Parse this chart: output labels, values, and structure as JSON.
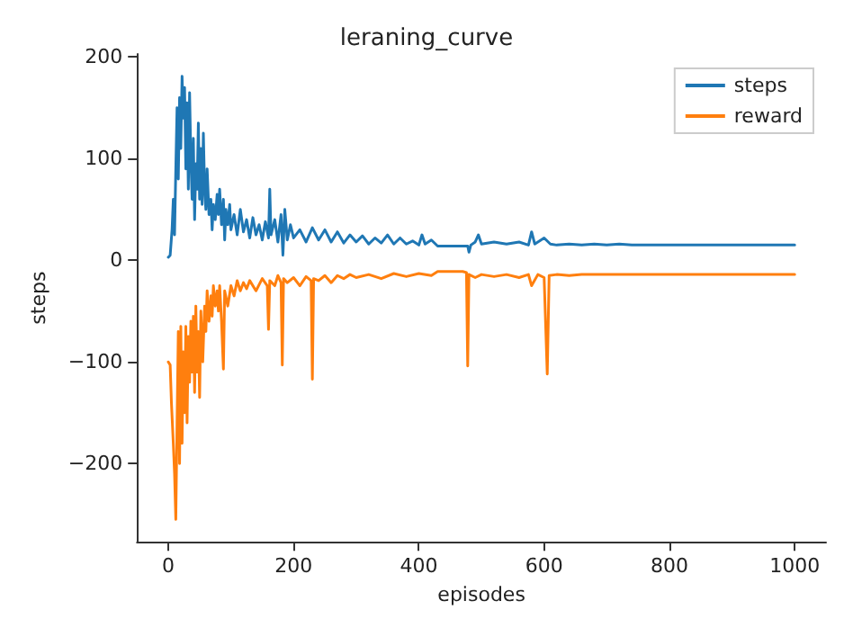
{
  "chart_data": {
    "type": "line",
    "title": "leraning_curve",
    "xlabel": "episodes",
    "ylabel": "steps",
    "xlim": [
      -50,
      1050
    ],
    "ylim": [
      -277,
      203
    ],
    "xticks": [
      0,
      200,
      400,
      600,
      800,
      1000
    ],
    "yticks": [
      -200,
      -100,
      0,
      100,
      200
    ],
    "grid": false,
    "legend": "top right",
    "marker": "none",
    "line_style": "solid",
    "series": [
      {
        "name": "steps",
        "color": "#1f77b4",
        "x": [
          0,
          3,
          6,
          8,
          10,
          12,
          14,
          16,
          18,
          20,
          22,
          24,
          26,
          28,
          30,
          32,
          34,
          36,
          38,
          40,
          42,
          44,
          46,
          48,
          50,
          52,
          54,
          56,
          58,
          60,
          62,
          65,
          68,
          70,
          72,
          75,
          78,
          80,
          82,
          85,
          88,
          90,
          92,
          95,
          98,
          100,
          105,
          110,
          115,
          120,
          125,
          130,
          135,
          140,
          145,
          150,
          155,
          160,
          162,
          164,
          170,
          175,
          180,
          183,
          186,
          190,
          195,
          200,
          210,
          220,
          230,
          240,
          250,
          260,
          270,
          280,
          290,
          300,
          310,
          320,
          330,
          340,
          350,
          360,
          370,
          380,
          390,
          400,
          405,
          410,
          420,
          430,
          440,
          470,
          478,
          480,
          483,
          490,
          495,
          500,
          520,
          540,
          560,
          575,
          580,
          585,
          600,
          610,
          620,
          640,
          660,
          680,
          700,
          720,
          740,
          1000
        ],
        "values": [
          3,
          5,
          30,
          60,
          25,
          90,
          150,
          80,
          160,
          110,
          181,
          140,
          170,
          90,
          155,
          70,
          165,
          100,
          60,
          120,
          40,
          95,
          70,
          135,
          60,
          110,
          55,
          125,
          70,
          50,
          90,
          45,
          60,
          30,
          55,
          40,
          65,
          45,
          70,
          35,
          60,
          20,
          50,
          35,
          55,
          30,
          45,
          25,
          50,
          28,
          40,
          22,
          42,
          25,
          35,
          20,
          38,
          22,
          70,
          25,
          40,
          18,
          45,
          5,
          50,
          20,
          35,
          22,
          30,
          18,
          32,
          20,
          30,
          18,
          28,
          17,
          25,
          18,
          24,
          16,
          22,
          17,
          25,
          16,
          22,
          16,
          19,
          15,
          25,
          16,
          20,
          14,
          14,
          14,
          14,
          8,
          15,
          18,
          25,
          16,
          18,
          16,
          18,
          15,
          28,
          16,
          22,
          16,
          15,
          16,
          15,
          16,
          15,
          16,
          15,
          15
        ]
      },
      {
        "name": "reward",
        "color": "#ff7f0e",
        "x": [
          0,
          3,
          5,
          8,
          10,
          12,
          14,
          16,
          18,
          20,
          22,
          24,
          26,
          28,
          30,
          32,
          34,
          36,
          38,
          40,
          42,
          44,
          46,
          48,
          50,
          52,
          55,
          58,
          60,
          62,
          65,
          68,
          70,
          72,
          75,
          78,
          80,
          82,
          85,
          88,
          90,
          95,
          100,
          105,
          110,
          115,
          120,
          125,
          130,
          140,
          150,
          158,
          160,
          162,
          170,
          175,
          180,
          182,
          184,
          190,
          200,
          210,
          220,
          228,
          230,
          232,
          240,
          250,
          260,
          270,
          280,
          290,
          300,
          320,
          340,
          360,
          380,
          400,
          420,
          430,
          470,
          476,
          478,
          480,
          490,
          500,
          520,
          540,
          560,
          575,
          580,
          590,
          600,
          605,
          608,
          620,
          640,
          660,
          700,
          1000
        ],
        "values": [
          -100,
          -103,
          -140,
          -180,
          -210,
          -255,
          -160,
          -70,
          -200,
          -65,
          -180,
          -90,
          -150,
          -65,
          -160,
          -75,
          -120,
          -60,
          -110,
          -55,
          -130,
          -45,
          -110,
          -70,
          -135,
          -50,
          -100,
          -45,
          -70,
          -30,
          -60,
          -35,
          -55,
          -25,
          -45,
          -30,
          -50,
          -25,
          -60,
          -107,
          -30,
          -45,
          -25,
          -35,
          -20,
          -30,
          -22,
          -28,
          -20,
          -30,
          -18,
          -25,
          -68,
          -20,
          -25,
          -15,
          -22,
          -103,
          -18,
          -22,
          -17,
          -25,
          -16,
          -20,
          -117,
          -18,
          -20,
          -15,
          -22,
          -15,
          -18,
          -14,
          -17,
          -14,
          -18,
          -13,
          -16,
          -13,
          -15,
          -11,
          -11,
          -12,
          -104,
          -14,
          -17,
          -14,
          -16,
          -14,
          -17,
          -14,
          -25,
          -14,
          -17,
          -112,
          -15,
          -14,
          -15,
          -14,
          -14,
          -14
        ]
      }
    ]
  }
}
